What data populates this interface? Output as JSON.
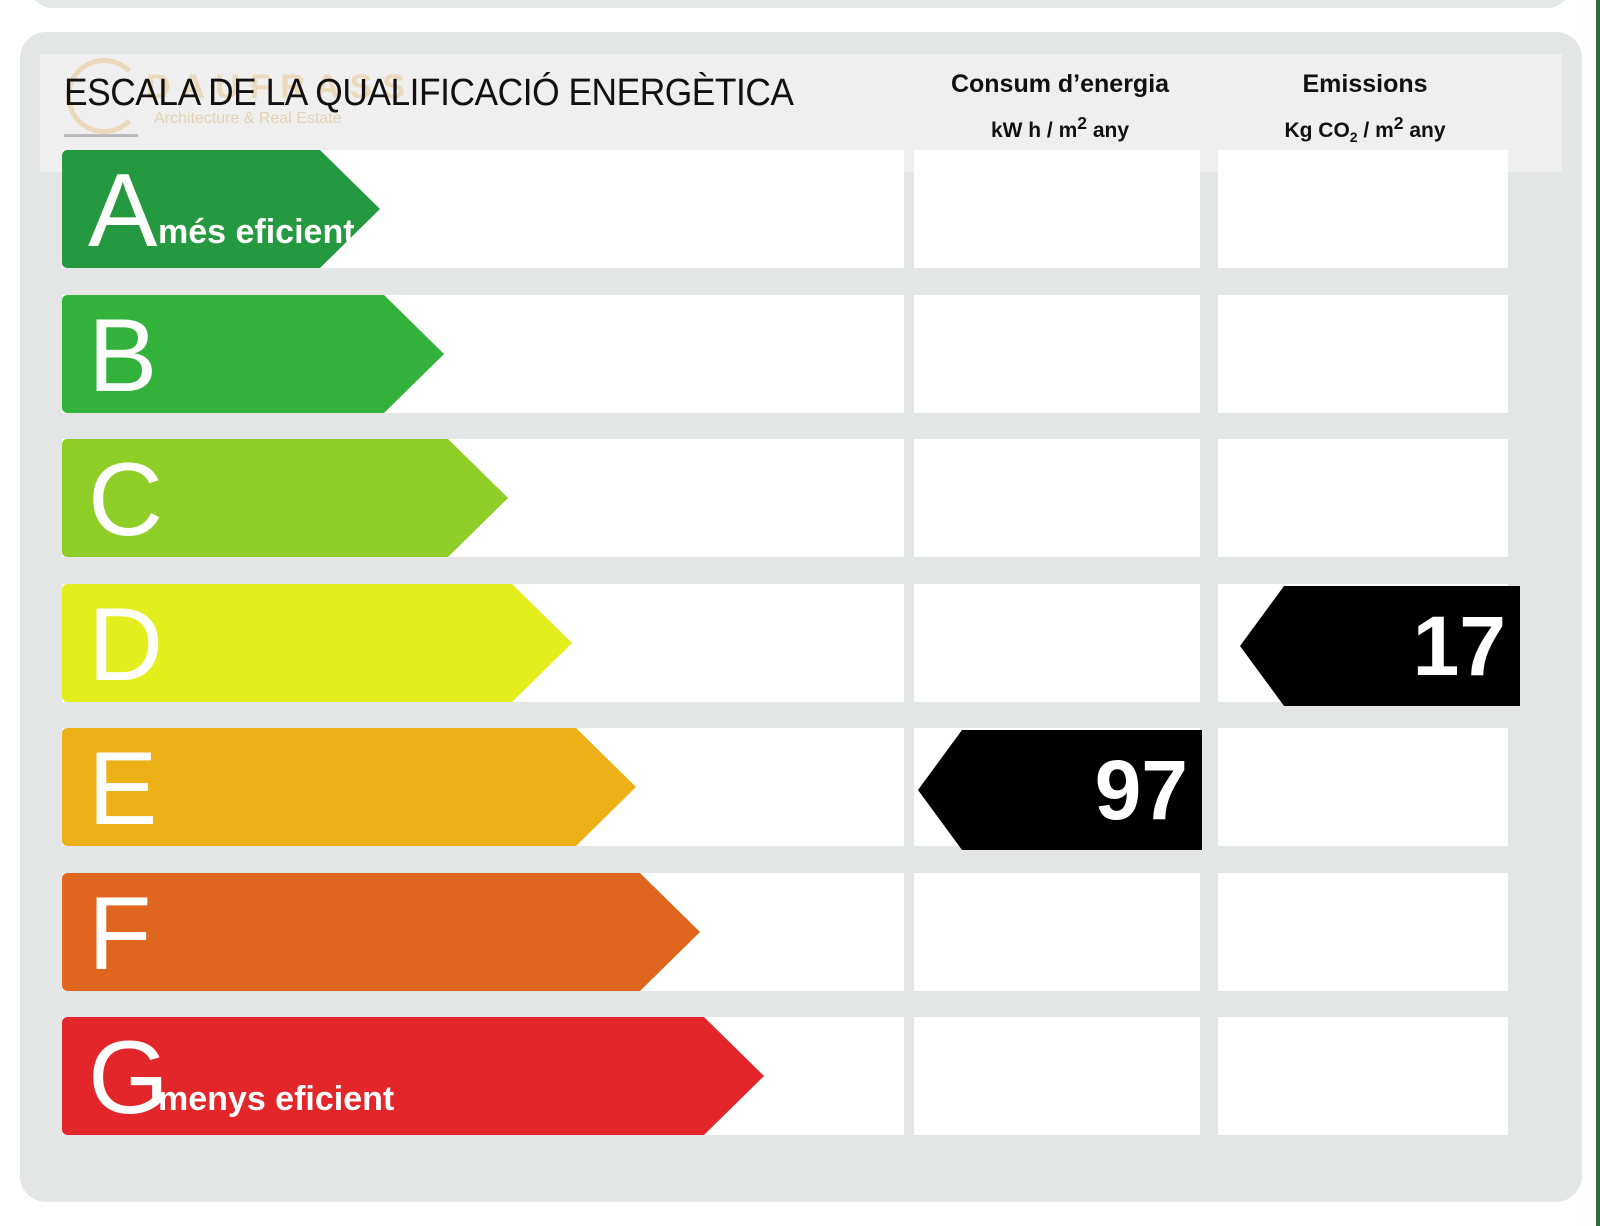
{
  "title": "ESCALA DE LA QUALIFICACIÓ ENERGÈTICA",
  "columns": {
    "energy": {
      "label": "Consum d’energia",
      "unit_prefix": "kW h / m",
      "unit_sup": "2",
      "unit_suffix": " any"
    },
    "emissions": {
      "label": "Emissions",
      "unit_prefix": "Kg CO",
      "unit_sub": "2",
      "unit_mid": " / m",
      "unit_sup": "2",
      "unit_suffix": " any"
    }
  },
  "logo": {
    "brand": "DAUFRASS",
    "tagline": "Architecture & Real Estate"
  },
  "classes": [
    {
      "letter": "A",
      "description": "més eficient",
      "color": "#25993f",
      "level": 1
    },
    {
      "letter": "B",
      "description": "",
      "color": "#33b23b",
      "level": 2
    },
    {
      "letter": "C",
      "description": "",
      "color": "#8fce27",
      "level": 3
    },
    {
      "letter": "D",
      "description": "",
      "color": "#e3ee1c",
      "level": 4
    },
    {
      "letter": "E",
      "description": "",
      "color": "#edb016",
      "level": 5
    },
    {
      "letter": "F",
      "description": "",
      "color": "#e0661f",
      "level": 6
    },
    {
      "letter": "G",
      "description": "menys eficient",
      "color": "#e3262a",
      "level": 7
    }
  ],
  "ratings": {
    "energy": {
      "class": "E",
      "value": "97"
    },
    "emissions": {
      "class": "D",
      "value": "17"
    }
  }
}
